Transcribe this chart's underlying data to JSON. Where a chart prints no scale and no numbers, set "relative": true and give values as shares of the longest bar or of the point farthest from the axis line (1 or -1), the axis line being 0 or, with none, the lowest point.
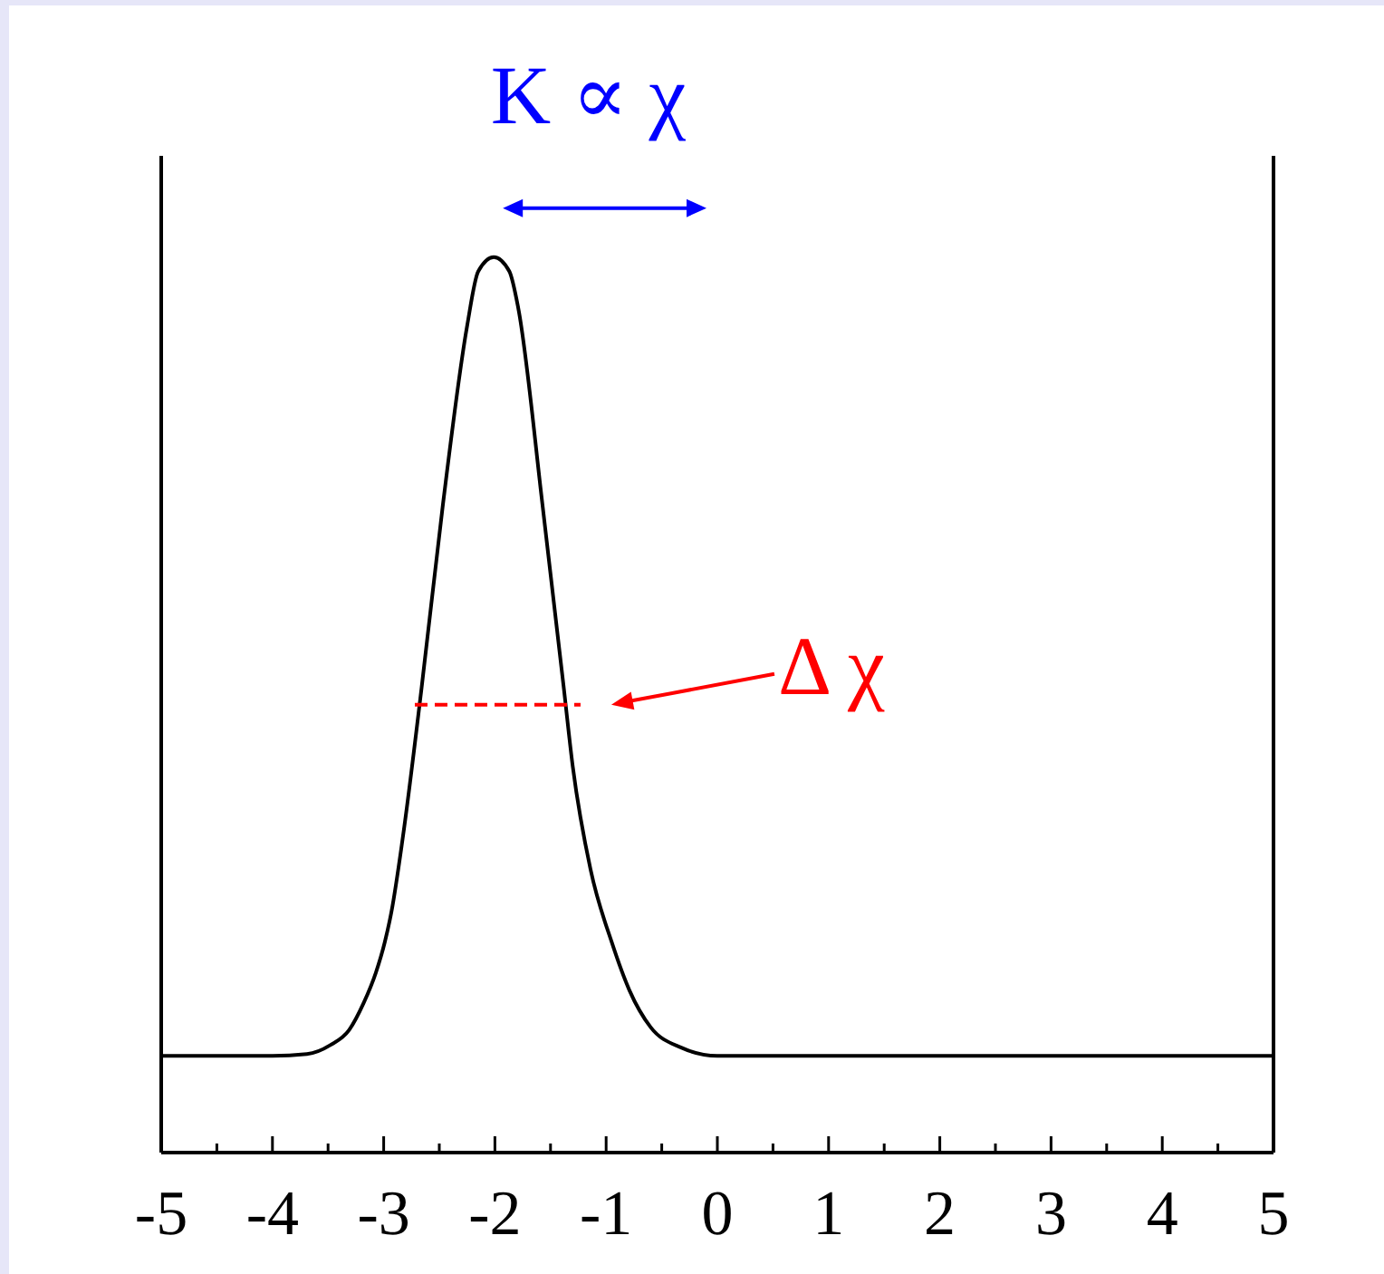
{
  "chart_data": {
    "type": "line",
    "relative": true,
    "tick_labels": "x",
    "xlim": [
      -5,
      5
    ],
    "xticks": [
      -5,
      {
        "value": -4.5,
        "label": null
      },
      -4,
      {
        "value": -3.5,
        "label": null
      },
      -3,
      {
        "value": -2.5,
        "label": null
      },
      -2,
      {
        "value": -1.5,
        "label": null
      },
      -1,
      {
        "value": -0.5,
        "label": null
      },
      0,
      {
        "value": 0.5,
        "label": null
      },
      1,
      {
        "value": 1.5,
        "label": null
      },
      2,
      {
        "value": 2.5,
        "label": null
      },
      3,
      {
        "value": 3.5,
        "label": null
      },
      4,
      {
        "value": 4.5,
        "label": null
      },
      5
    ],
    "annotations": [
      "K ∝ χ",
      "Δ χ"
    ],
    "series": [
      {
        "color": "#000000",
        "x": [
          -5,
          -4,
          -3.69,
          -3.48,
          -3.31,
          -3.18,
          -3.07,
          -2.99,
          -2.93,
          -2.83,
          -2.66,
          -2.47,
          -2.25,
          -2.15,
          -2.01,
          -1.87,
          -1.79,
          -1.57,
          -1.38,
          -1.3,
          -1.14,
          -0.95,
          -0.79,
          -0.6,
          -0.32,
          0,
          5
        ],
        "values": [
          0.108,
          0.108,
          0.11,
          0.12,
          0.137,
          0.167,
          0.201,
          0.235,
          0.269,
          0.35,
          0.518,
          0.721,
          0.923,
          0.984,
          1,
          0.984,
          0.943,
          0.721,
          0.518,
          0.431,
          0.316,
          0.235,
          0.181,
          0.14,
          0.117,
          0.108,
          0.108
        ]
      },
      {
        "type": "line",
        "color": "#ff0000",
        "line_style": "dashed",
        "x": [
          -2.72,
          -1.23
        ],
        "values": [
          0.5,
          0.5
        ]
      }
    ]
  }
}
